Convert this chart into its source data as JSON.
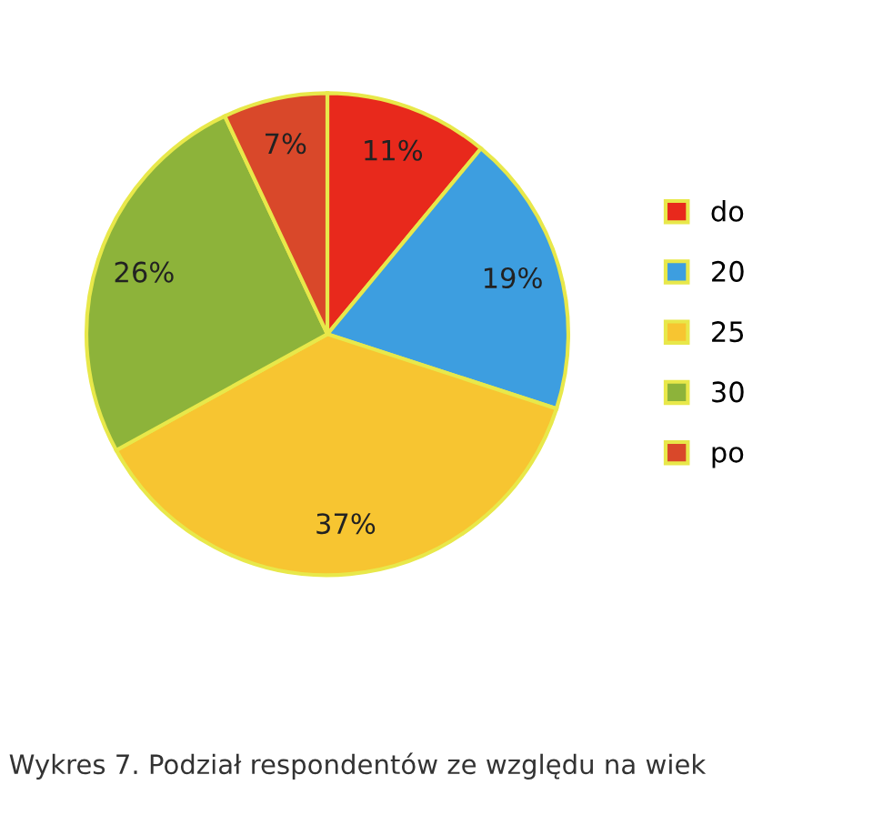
{
  "chart_data": {
    "type": "pie",
    "title": "Wykres 7. Podział respondentów ze względu na wiek",
    "categories": [
      "do",
      "20",
      "25",
      "30",
      "po"
    ],
    "values": [
      11,
      19,
      37,
      26,
      7
    ],
    "value_labels": [
      "11%",
      "19%",
      "37%",
      "26%",
      "7%"
    ],
    "colors": [
      "#e8291c",
      "#3d9ee0",
      "#f7c531",
      "#8db33a",
      "#d9482a"
    ],
    "legend": "right"
  }
}
